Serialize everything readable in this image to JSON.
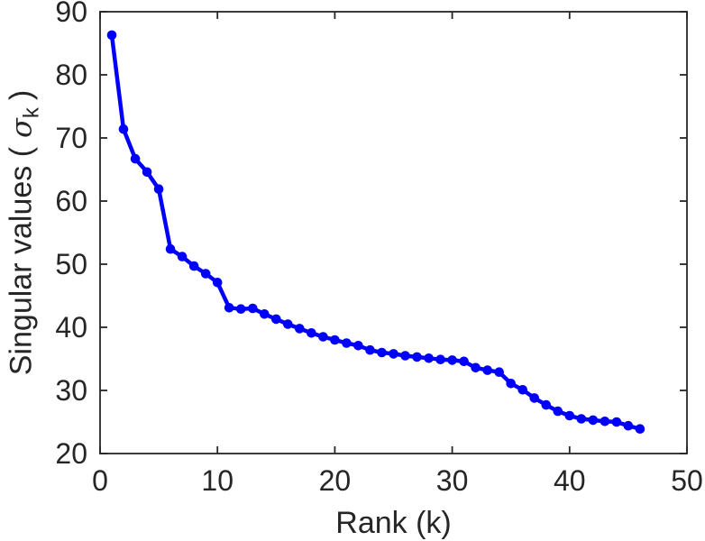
{
  "figure": {
    "background": "#ffffff",
    "axis_color": "#262626",
    "tick_label_color": "#262626"
  },
  "chart_data": {
    "type": "line",
    "title": "",
    "xlabel": "Rank (k)",
    "ylabel": {
      "prefix": "Singular values (",
      "sigma": "σ",
      "subscript": "k",
      "suffix": ")"
    },
    "xlim": [
      0,
      50
    ],
    "ylim": [
      20,
      90
    ],
    "x_ticks": [
      0,
      10,
      20,
      30,
      40,
      50
    ],
    "y_ticks": [
      20,
      30,
      40,
      50,
      60,
      70,
      80,
      90
    ],
    "grid": false,
    "legend": "none",
    "box": true,
    "line_color": "#0000fa",
    "marker": "circle",
    "x": [
      1,
      2,
      3,
      4,
      5,
      6,
      7,
      8,
      9,
      10,
      11,
      12,
      13,
      14,
      15,
      16,
      17,
      18,
      19,
      20,
      21,
      22,
      23,
      24,
      25,
      26,
      27,
      28,
      29,
      30,
      31,
      32,
      33,
      34,
      35,
      36,
      37,
      38,
      39,
      40,
      41,
      42,
      43,
      44,
      45,
      46
    ],
    "values": [
      86.3,
      71.4,
      66.7,
      64.6,
      61.9,
      52.4,
      51.2,
      49.7,
      48.5,
      47.1,
      43.1,
      42.9,
      43.0,
      42.1,
      41.3,
      40.5,
      39.8,
      39.1,
      38.5,
      38.0,
      37.5,
      37.1,
      36.4,
      36.0,
      35.8,
      35.5,
      35.3,
      35.1,
      34.9,
      34.8,
      34.6,
      33.6,
      33.2,
      32.9,
      31.1,
      30.1,
      28.8,
      27.7,
      26.7,
      26.0,
      25.5,
      25.3,
      25.1,
      25.0,
      24.4,
      23.9
    ]
  }
}
